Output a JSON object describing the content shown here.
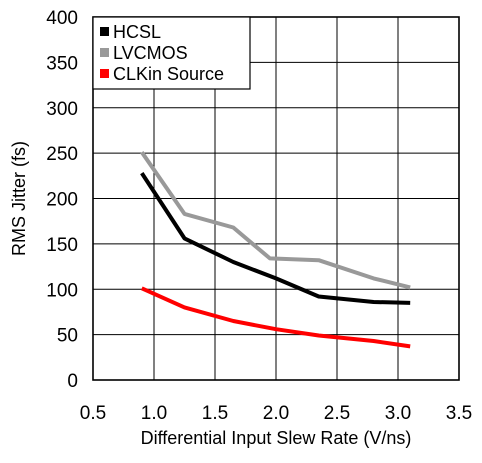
{
  "chart_data": {
    "type": "line",
    "title": "",
    "xlabel": "Differential Input Slew Rate (V/ns)",
    "ylabel": "RMS Jitter (fs)",
    "xlim": [
      0.5,
      3.5
    ],
    "ylim": [
      0,
      400
    ],
    "xticks": [
      "0.5",
      "1.0",
      "1.5",
      "2.0",
      "2.5",
      "3.0",
      "3.5"
    ],
    "yticks": [
      "0",
      "50",
      "100",
      "150",
      "200",
      "250",
      "300",
      "350",
      "400"
    ],
    "grid": true,
    "legend_position": "top-left",
    "series": [
      {
        "name": "HCSL",
        "color": "#000000",
        "x": [
          0.9,
          1.25,
          1.65,
          2.0,
          2.35,
          2.8,
          3.1
        ],
        "y": [
          228,
          156,
          130,
          112,
          92,
          86,
          85
        ]
      },
      {
        "name": "LVCMOS",
        "color": "#999999",
        "x": [
          0.9,
          1.25,
          1.65,
          1.95,
          2.35,
          2.8,
          3.1
        ],
        "y": [
          251,
          183,
          168,
          134,
          132,
          112,
          102
        ]
      },
      {
        "name": "CLKin Source",
        "color": "#ff0000",
        "x": [
          0.9,
          1.25,
          1.65,
          2.0,
          2.35,
          2.8,
          3.1
        ],
        "y": [
          101,
          80,
          65,
          56,
          49,
          43,
          37
        ]
      }
    ]
  }
}
